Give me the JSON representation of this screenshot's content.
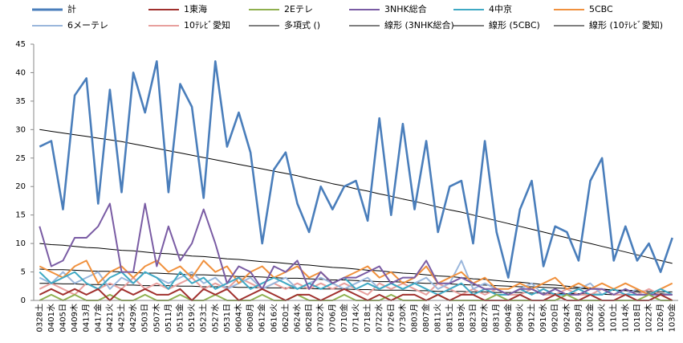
{
  "chart_data": {
    "type": "line",
    "categories": [
      "0328土",
      "0401水",
      "0405日",
      "0409木",
      "0413月",
      "0417金",
      "0421火",
      "0425土",
      "0429水",
      "0503日",
      "0507木",
      "0511月",
      "0515金",
      "0519火",
      "0523土",
      "0527水",
      "0531日",
      "0604木",
      "0608月",
      "0612金",
      "0616火",
      "0620土",
      "0624水",
      "0628日",
      "0702木",
      "0706月",
      "0710金",
      "0714火",
      "0718土",
      "0722水",
      "0726日",
      "0730木",
      "0803月",
      "0807金",
      "0811火",
      "0815土",
      "0819水",
      "0823日",
      "0827木",
      "0831月",
      "0904金",
      "0908火",
      "0912土",
      "0916水",
      "0920日",
      "0924木",
      "0928月",
      "1002金",
      "1006火",
      "1010土",
      "1014水",
      "1018日",
      "1022木",
      "1026月",
      "1030金"
    ],
    "ylim": [
      0,
      45
    ],
    "yticks": [
      0,
      5,
      10,
      15,
      20,
      25,
      30,
      35,
      40,
      45
    ],
    "legend": "top",
    "series": [
      {
        "name": "計",
        "color": "#4a7ebb",
        "values": [
          27,
          28,
          16,
          36,
          39,
          17,
          37,
          19,
          40,
          33,
          42,
          19,
          38,
          34,
          18,
          42,
          27,
          33,
          26,
          10,
          23,
          26,
          17,
          12,
          20,
          16,
          20,
          21,
          14,
          32,
          15,
          31,
          16,
          28,
          12,
          20,
          21,
          10,
          28,
          12,
          4,
          16,
          21,
          6,
          13,
          12,
          7,
          21,
          25,
          7,
          13,
          7,
          10,
          5,
          11
        ]
      },
      {
        "name": "1東海",
        "color": "#a0302d",
        "values": [
          1,
          2,
          1,
          2,
          1,
          2,
          0,
          2,
          1,
          2,
          1,
          1,
          2,
          0,
          2,
          1,
          2,
          0,
          1,
          2,
          1,
          0,
          1,
          1,
          0,
          1,
          2,
          1,
          0,
          1,
          0,
          1,
          1,
          0,
          1,
          0,
          1,
          1,
          0,
          0,
          0,
          1,
          0,
          0,
          1,
          0,
          0,
          1,
          0,
          0,
          1,
          0,
          0,
          1,
          0
        ]
      },
      {
        "name": "2Eテレ",
        "color": "#8fb04f",
        "values": [
          0,
          1,
          0,
          1,
          0,
          0,
          1,
          0,
          0,
          1,
          0,
          0,
          1,
          0,
          0,
          1,
          0,
          0,
          0,
          1,
          0,
          0,
          1,
          0,
          0,
          0,
          1,
          0,
          0,
          0,
          1,
          0,
          0,
          0,
          1,
          0,
          0,
          0,
          0,
          1,
          0,
          0,
          0,
          0,
          0,
          1,
          0,
          0,
          0,
          0,
          0,
          0,
          1,
          0,
          0
        ]
      },
      {
        "name": "3NHK総合",
        "color": "#7a5ca4",
        "values": [
          13,
          6,
          7,
          11,
          11,
          13,
          17,
          5,
          5,
          17,
          6,
          13,
          7,
          10,
          16,
          10,
          3,
          6,
          5,
          2,
          6,
          5,
          7,
          2,
          5,
          3,
          4,
          4,
          5,
          6,
          3,
          4,
          4,
          7,
          3,
          3,
          4,
          3,
          2,
          2,
          1,
          2,
          2,
          1,
          2,
          1,
          1,
          2,
          2,
          1,
          2,
          1,
          1,
          1,
          1
        ]
      },
      {
        "name": "4中京",
        "color": "#3fa9c4",
        "values": [
          5,
          3,
          4,
          5,
          3,
          2,
          4,
          5,
          3,
          5,
          4,
          2,
          5,
          3,
          4,
          2,
          3,
          4,
          2,
          3,
          4,
          3,
          2,
          3,
          2,
          3,
          4,
          2,
          3,
          2,
          3,
          2,
          3,
          2,
          1,
          2,
          3,
          1,
          2,
          1,
          1,
          2,
          1,
          2,
          1,
          1,
          2,
          1,
          1,
          2,
          1,
          1,
          1,
          2,
          1
        ]
      },
      {
        "name": "5CBC",
        "color": "#f0913e",
        "values": [
          6,
          5,
          4,
          6,
          7,
          3,
          5,
          6,
          4,
          6,
          7,
          5,
          6,
          4,
          7,
          5,
          6,
          3,
          5,
          6,
          4,
          5,
          6,
          4,
          5,
          3,
          4,
          5,
          6,
          4,
          5,
          3,
          4,
          6,
          3,
          4,
          5,
          3,
          4,
          2,
          2,
          3,
          2,
          3,
          4,
          2,
          3,
          2,
          3,
          2,
          3,
          2,
          1,
          2,
          3
        ]
      },
      {
        "name": "6メーテレ",
        "color": "#9bb7dc",
        "values": [
          4,
          3,
          5,
          3,
          4,
          5,
          2,
          4,
          3,
          5,
          4,
          3,
          4,
          5,
          3,
          4,
          2,
          3,
          4,
          2,
          3,
          4,
          2,
          3,
          4,
          3,
          2,
          3,
          4,
          2,
          3,
          2,
          3,
          4,
          2,
          3,
          7,
          2,
          3,
          2,
          1,
          2,
          3,
          1,
          2,
          1,
          2,
          3,
          1,
          2,
          1,
          2,
          1,
          2,
          1
        ]
      },
      {
        "name": "10ﾃﾚﾋﾞ愛知",
        "color": "#e8a09e",
        "values": [
          2,
          3,
          2,
          1,
          3,
          2,
          3,
          2,
          4,
          2,
          3,
          2,
          3,
          4,
          2,
          3,
          2,
          4,
          3,
          2,
          3,
          2,
          3,
          2,
          3,
          2,
          3,
          2,
          1,
          3,
          2,
          3,
          2,
          1,
          3,
          2,
          1,
          2,
          1,
          2,
          1,
          1,
          2,
          1,
          1,
          2,
          1,
          1,
          2,
          1,
          1,
          1,
          2,
          1,
          1
        ]
      },
      {
        "name": "多項式 ()",
        "color": "#000000",
        "values": [
          30,
          29.7,
          29.4,
          29.1,
          28.8,
          28.5,
          28.2,
          27.9,
          27.5,
          27.1,
          26.7,
          26.3,
          25.9,
          25.5,
          25.1,
          24.7,
          24.3,
          23.9,
          23.5,
          23.1,
          22.7,
          22.3,
          21.9,
          21.4,
          21,
          20.5,
          20.1,
          19.6,
          19.2,
          18.7,
          18.3,
          17.8,
          17.4,
          16.9,
          16.4,
          15.9,
          15.5,
          15,
          14.5,
          14,
          13.5,
          13,
          12.5,
          12,
          11.5,
          11,
          10.5,
          10,
          9.5,
          9,
          8.5,
          8,
          7.5,
          7,
          6.5
        ]
      },
      {
        "name": "線形 (3NHK総合)",
        "color": "#000000",
        "values": [
          10,
          9.8,
          9.7,
          9.5,
          9.3,
          9.2,
          9,
          8.8,
          8.7,
          8.5,
          8.3,
          8.2,
          8,
          7.8,
          7.7,
          7.5,
          7.3,
          7.2,
          7,
          6.8,
          6.7,
          6.5,
          6.3,
          6.2,
          6,
          5.8,
          5.7,
          5.5,
          5.3,
          5.2,
          5,
          4.8,
          4.7,
          4.5,
          4.3,
          4.2,
          4,
          3.8,
          3.7,
          3.5,
          3.3,
          3.2,
          3,
          2.8,
          2.7,
          2.5,
          2.3,
          2.2,
          2,
          1.8,
          1.7,
          1.5,
          1.3,
          1.2,
          1
        ]
      },
      {
        "name": "線形 (5CBC)",
        "color": "#000000",
        "values": [
          5.5,
          5.4,
          5.4,
          5.3,
          5.2,
          5.1,
          5.1,
          5,
          4.9,
          4.8,
          4.8,
          4.7,
          4.6,
          4.5,
          4.5,
          4.4,
          4.3,
          4.2,
          4.2,
          4.1,
          4,
          3.9,
          3.9,
          3.8,
          3.7,
          3.6,
          3.6,
          3.5,
          3.4,
          3.3,
          3.3,
          3.2,
          3.1,
          3,
          3,
          2.9,
          2.8,
          2.7,
          2.7,
          2.6,
          2.5,
          2.4,
          2.4,
          2.3,
          2.2,
          2.1,
          2.1,
          2,
          1.9,
          1.8,
          1.8,
          1.7,
          1.6,
          1.5,
          1.5
        ]
      },
      {
        "name": "線形 (10ﾃﾚﾋﾞ愛知)",
        "color": "#000000",
        "values": [
          3,
          3,
          2.9,
          2.9,
          2.8,
          2.8,
          2.8,
          2.7,
          2.7,
          2.6,
          2.6,
          2.6,
          2.5,
          2.5,
          2.4,
          2.4,
          2.4,
          2.3,
          2.3,
          2.2,
          2.2,
          2.2,
          2.1,
          2.1,
          2,
          2,
          2,
          1.9,
          1.9,
          1.8,
          1.8,
          1.8,
          1.7,
          1.7,
          1.6,
          1.6,
          1.6,
          1.5,
          1.5,
          1.4,
          1.4,
          1.4,
          1.3,
          1.3,
          1.2,
          1.2,
          1.2,
          1.1,
          1.1,
          1,
          1,
          1,
          1,
          1,
          1
        ]
      }
    ]
  }
}
